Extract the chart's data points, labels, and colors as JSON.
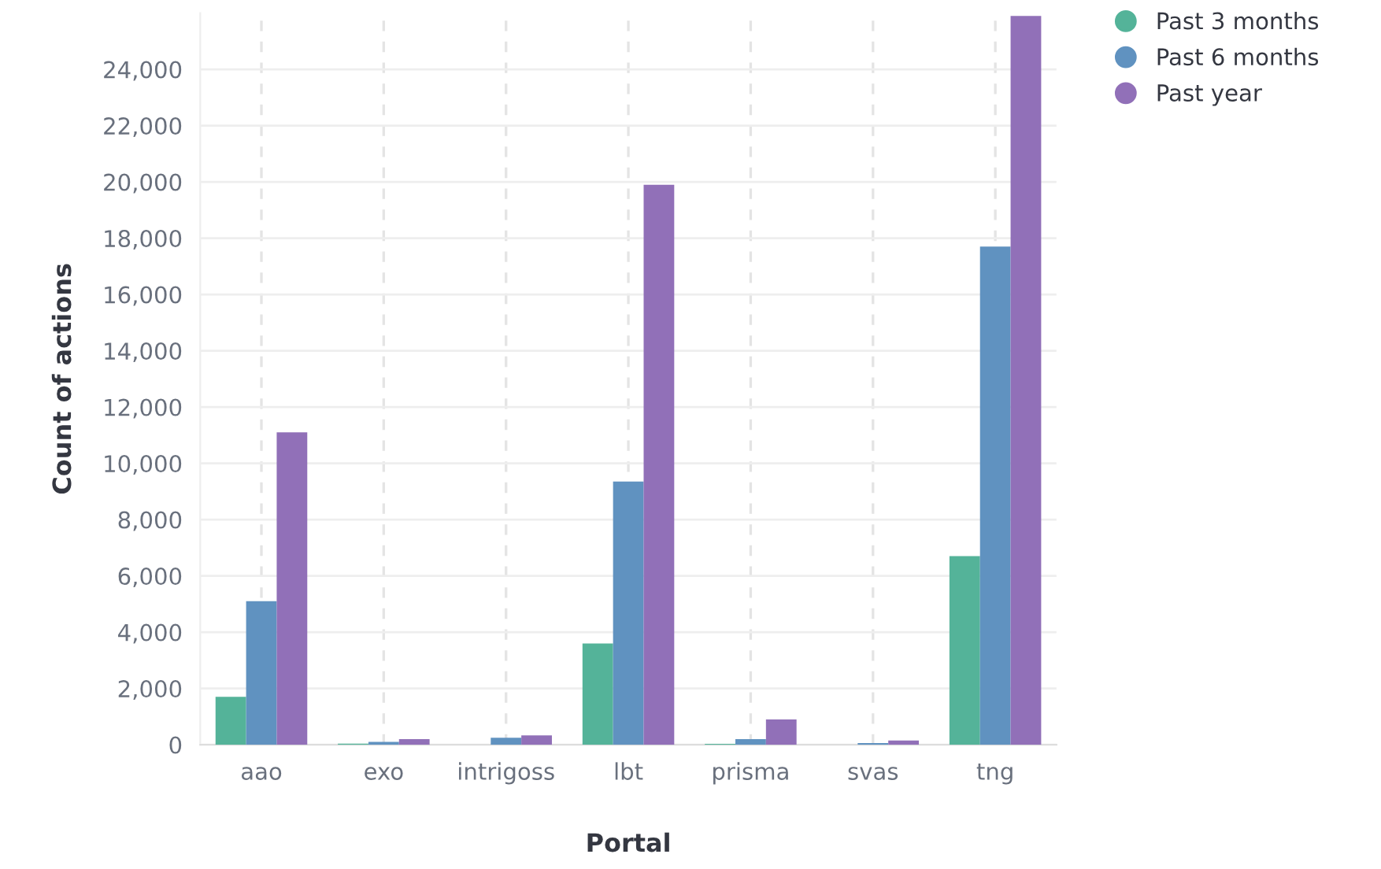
{
  "chart_data": {
    "type": "bar",
    "xlabel": "Portal",
    "ylabel": "Count of actions",
    "categories": [
      "aao",
      "exo",
      "intrigoss",
      "lbt",
      "prisma",
      "svas",
      "tng"
    ],
    "series": [
      {
        "name": "Past 3 months",
        "color": "#54b399",
        "values": [
          1700,
          40,
          null,
          3600,
          30,
          null,
          6700
        ]
      },
      {
        "name": "Past 6 months",
        "color": "#6092c0",
        "values": [
          5100,
          100,
          250,
          9350,
          200,
          60,
          17700
        ]
      },
      {
        "name": "Past year",
        "color": "#9170b8",
        "values": [
          11100,
          200,
          330,
          19900,
          900,
          150,
          25900
        ]
      }
    ],
    "ylim": [
      0,
      26000
    ],
    "yticks": [
      {
        "value": 0,
        "label": "0"
      },
      {
        "value": 2000,
        "label": "2,000"
      },
      {
        "value": 4000,
        "label": "4,000"
      },
      {
        "value": 6000,
        "label": "6,000"
      },
      {
        "value": 8000,
        "label": "8,000"
      },
      {
        "value": 10000,
        "label": "10,000"
      },
      {
        "value": 12000,
        "label": "12,000"
      },
      {
        "value": 14000,
        "label": "14,000"
      },
      {
        "value": 16000,
        "label": "16,000"
      },
      {
        "value": 18000,
        "label": "18,000"
      },
      {
        "value": 20000,
        "label": "20,000"
      },
      {
        "value": 22000,
        "label": "22,000"
      },
      {
        "value": 24000,
        "label": "24,000"
      }
    ],
    "grid": true,
    "legend": "top right"
  }
}
